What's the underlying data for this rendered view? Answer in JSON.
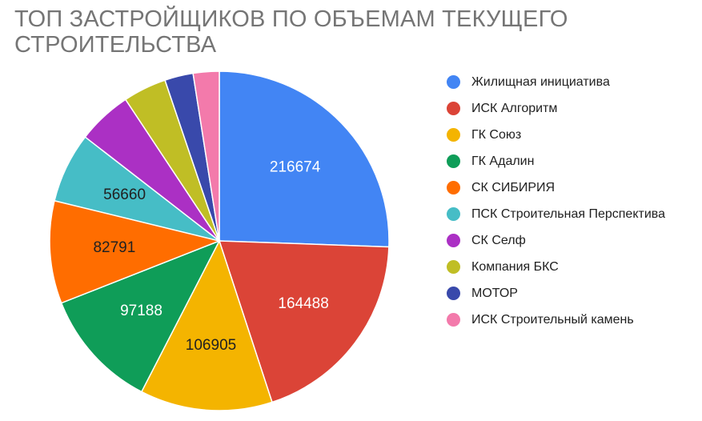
{
  "chart_data": {
    "type": "pie",
    "title": "ТОП ЗАСТРОЙЩИКОВ ПО ОБЪЕМАМ ТЕКУЩЕГО СТРОИТЕЛЬСТВА",
    "legend_position": "right",
    "slices": [
      {
        "label": "Жилищная инициатива",
        "value": 216674,
        "color": "#4285F4",
        "value_label": "216674",
        "label_color": "#ffffff"
      },
      {
        "label": "ИСК Алгоритм",
        "value": 164488,
        "color": "#DB4437",
        "value_label": "164488",
        "label_color": "#ffffff"
      },
      {
        "label": "ГК Союз",
        "value": 106905,
        "color": "#F4B400",
        "value_label": "106905",
        "label_color": "#212121"
      },
      {
        "label": "ГК Адалин",
        "value": 97188,
        "color": "#0F9D58",
        "value_label": "97188",
        "label_color": "#ffffff"
      },
      {
        "label": "СК СИБИРИЯ",
        "value": 82791,
        "color": "#FF6D00",
        "value_label": "82791",
        "label_color": "#212121"
      },
      {
        "label": "ПСК Строительная Перспектива",
        "value": 56660,
        "color": "#46BDC6",
        "value_label": "56660",
        "label_color": "#212121"
      },
      {
        "label": "СК Селф",
        "value": 44000,
        "color": "#AB30C4",
        "value_label": "",
        "label_color": "#ffffff"
      },
      {
        "label": "Компания БКС",
        "value": 35000,
        "color": "#C0BE25",
        "value_label": "",
        "label_color": "#ffffff"
      },
      {
        "label": "МОТОР",
        "value": 23000,
        "color": "#3949AB",
        "value_label": "",
        "label_color": "#ffffff"
      },
      {
        "label": "ИСК Строительный камень",
        "value": 21000,
        "color": "#F37AAB",
        "value_label": "",
        "label_color": "#ffffff"
      }
    ]
  }
}
